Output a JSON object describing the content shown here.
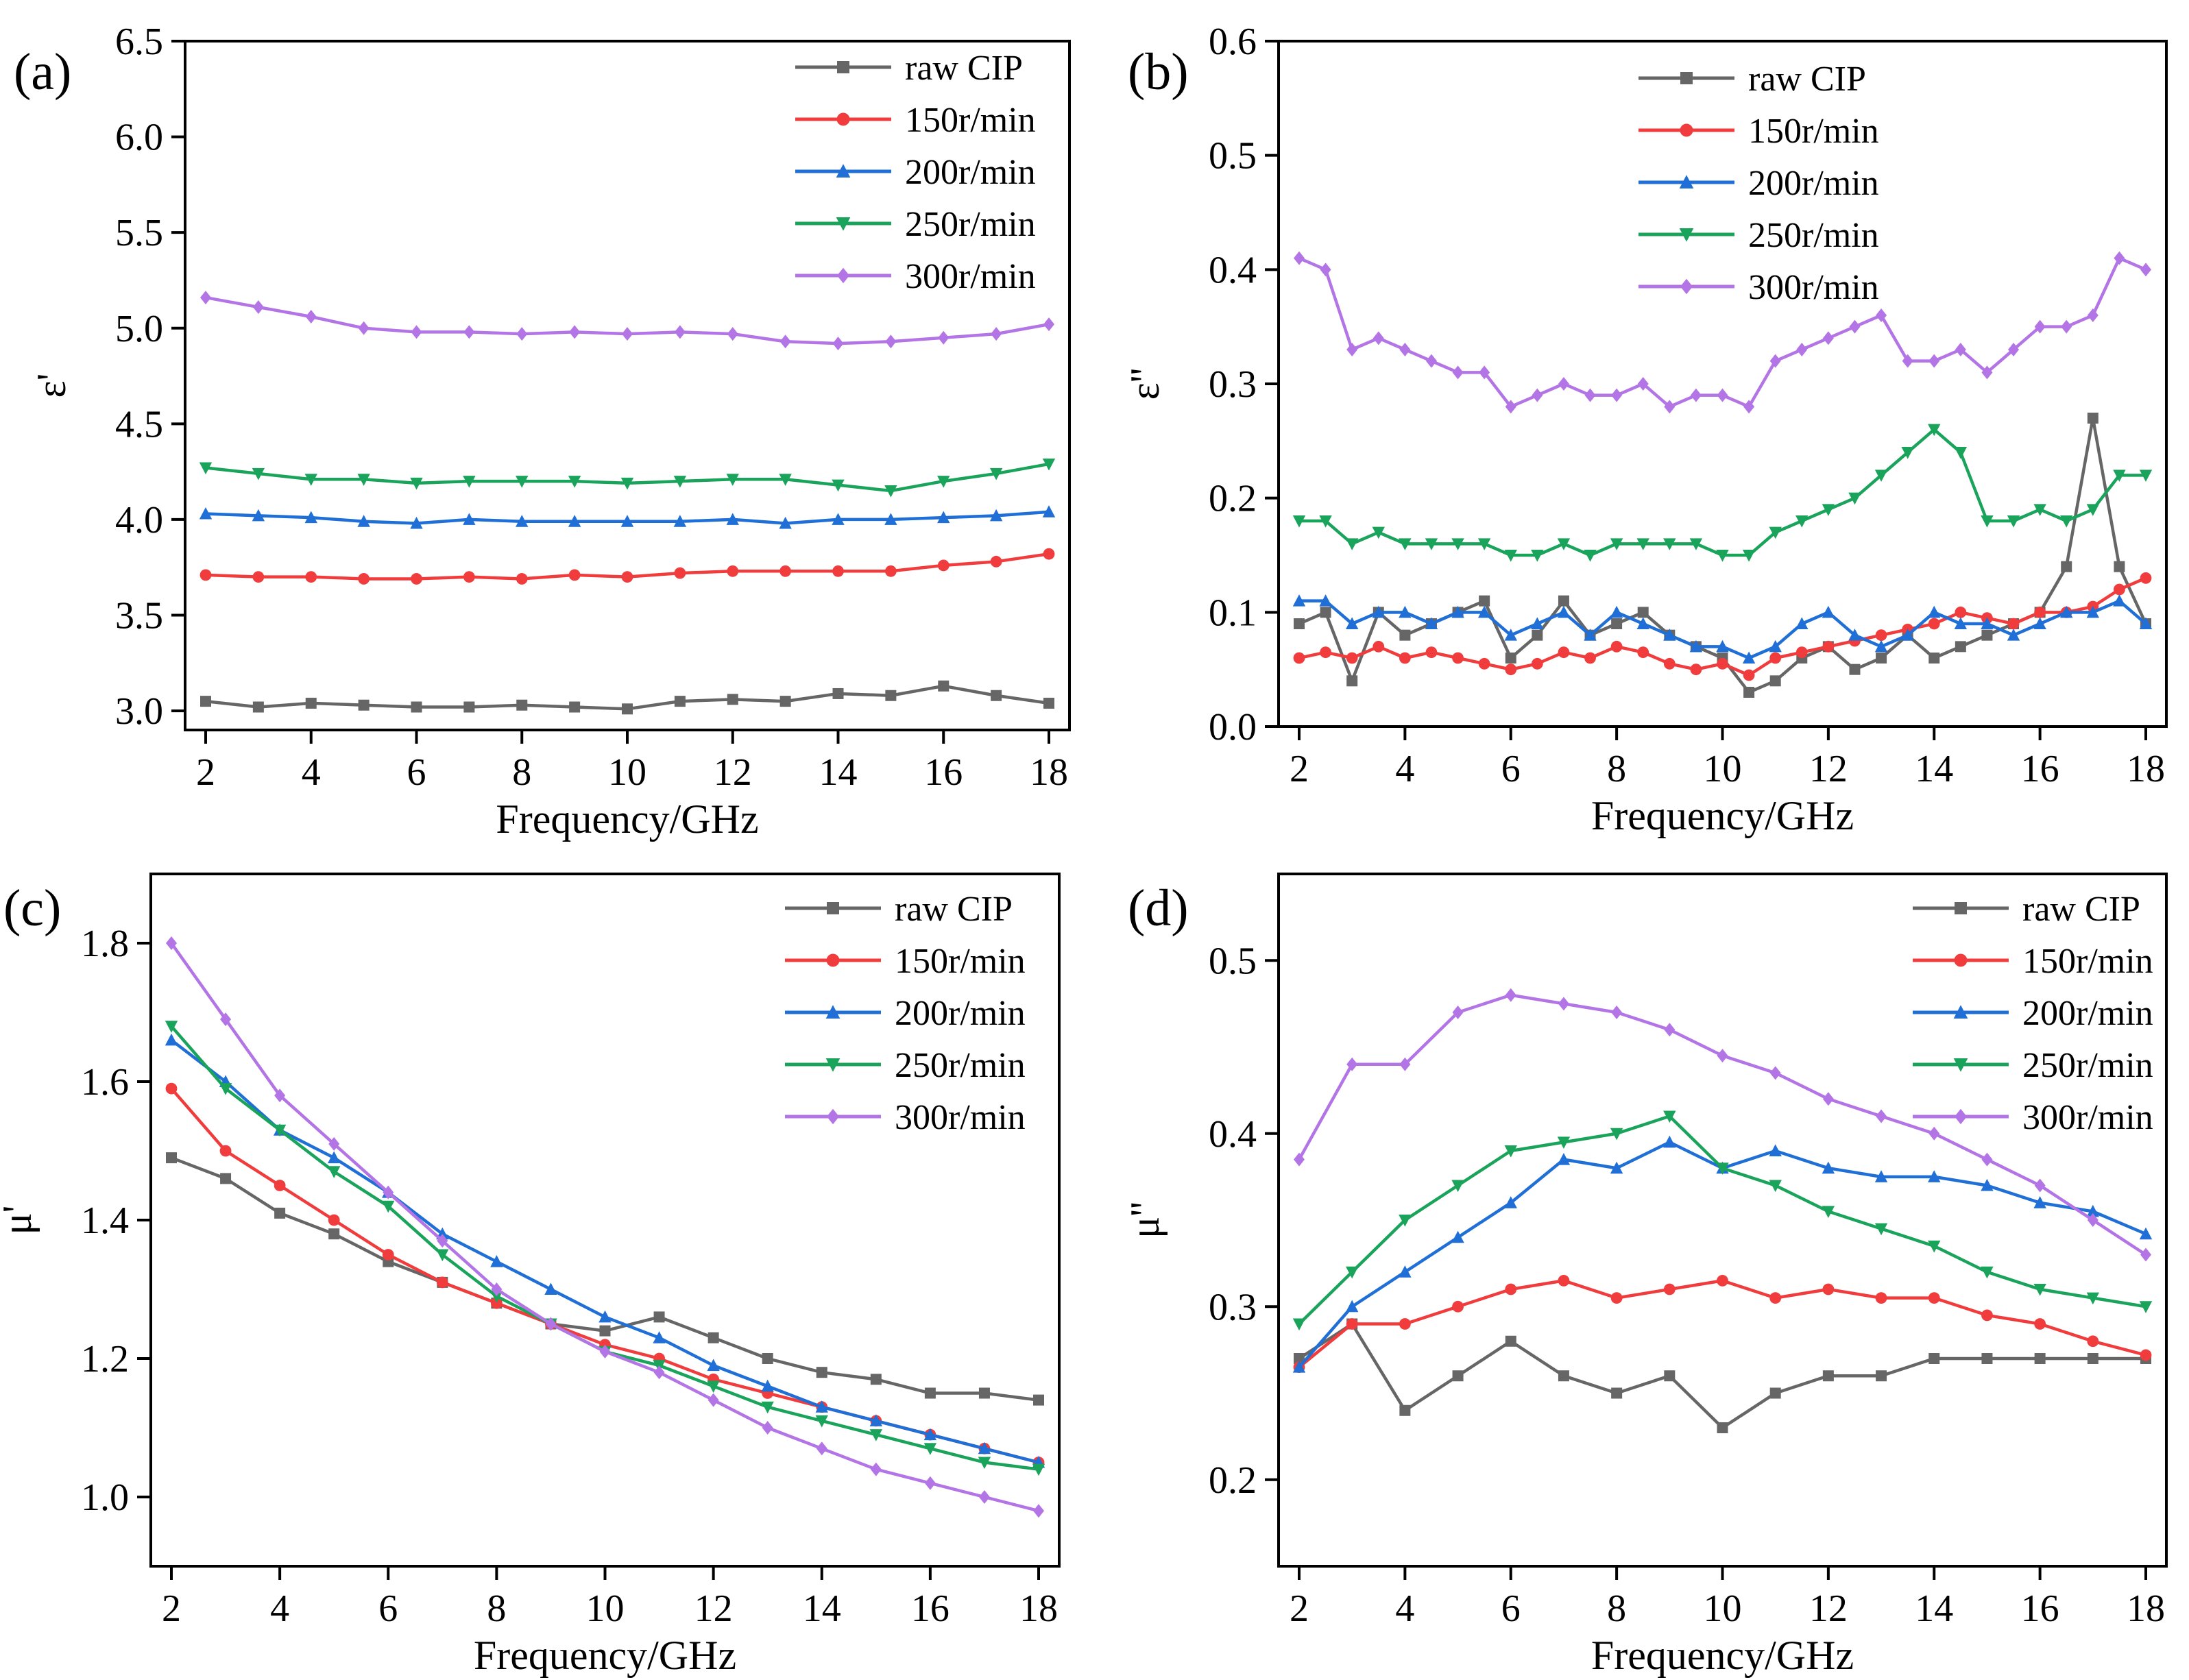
{
  "chart_data": [
    {
      "panel": "(a)",
      "type": "line",
      "xlabel": "Frequency/GHz",
      "ylabel": "ε'",
      "xlim": [
        2,
        18
      ],
      "ylim": [
        2.9,
        6.5
      ],
      "xticks": [
        2,
        4,
        6,
        8,
        10,
        12,
        14,
        16,
        18
      ],
      "yticks": [
        "3.0",
        "3.5",
        "4.0",
        "4.5",
        "5.0",
        "5.5",
        "6.0",
        "6.5"
      ],
      "x": [
        2,
        3,
        4,
        5,
        6,
        7,
        8,
        9,
        10,
        11,
        12,
        13,
        14,
        15,
        16,
        17,
        18
      ],
      "series": [
        {
          "name": "raw CIP",
          "color": "#666666",
          "marker": "square",
          "values": [
            3.05,
            3.02,
            3.04,
            3.03,
            3.02,
            3.02,
            3.03,
            3.02,
            3.01,
            3.05,
            3.06,
            3.05,
            3.09,
            3.08,
            3.13,
            3.08,
            3.04
          ]
        },
        {
          "name": "150r/min",
          "color": "#f03c3c",
          "marker": "circle",
          "values": [
            3.71,
            3.7,
            3.7,
            3.69,
            3.69,
            3.7,
            3.69,
            3.71,
            3.7,
            3.72,
            3.73,
            3.73,
            3.73,
            3.73,
            3.76,
            3.78,
            3.82
          ]
        },
        {
          "name": "200r/min",
          "color": "#1f6fd6",
          "marker": "triangle-up",
          "values": [
            4.03,
            4.02,
            4.01,
            3.99,
            3.98,
            4.0,
            3.99,
            3.99,
            3.99,
            3.99,
            4.0,
            3.98,
            4.0,
            4.0,
            4.01,
            4.02,
            4.04
          ]
        },
        {
          "name": "250r/min",
          "color": "#1aa35a",
          "marker": "triangle-down",
          "values": [
            4.27,
            4.24,
            4.21,
            4.21,
            4.19,
            4.2,
            4.2,
            4.2,
            4.19,
            4.2,
            4.21,
            4.21,
            4.18,
            4.15,
            4.2,
            4.24,
            4.29
          ]
        },
        {
          "name": "300r/min",
          "color": "#b374e6",
          "marker": "diamond",
          "values": [
            5.16,
            5.11,
            5.06,
            5.0,
            4.98,
            4.98,
            4.97,
            4.98,
            4.97,
            4.98,
            4.97,
            4.93,
            4.92,
            4.93,
            4.95,
            4.97,
            5.02
          ]
        }
      ]
    },
    {
      "panel": "(b)",
      "type": "line",
      "xlabel": "Frequency/GHz",
      "ylabel": "ε''",
      "xlim": [
        2,
        18
      ],
      "ylim": [
        0.0,
        0.6
      ],
      "xticks": [
        2,
        4,
        6,
        8,
        10,
        12,
        14,
        16,
        18
      ],
      "yticks": [
        "0.0",
        "0.1",
        "0.2",
        "0.3",
        "0.4",
        "0.5",
        "0.6"
      ],
      "x": [
        2,
        2.5,
        3,
        3.5,
        4,
        4.5,
        5,
        5.5,
        6,
        6.5,
        7,
        7.5,
        8,
        8.5,
        9,
        9.5,
        10,
        10.5,
        11,
        11.5,
        12,
        12.5,
        13,
        13.5,
        14,
        14.5,
        15,
        15.5,
        16,
        16.5,
        17,
        17.5,
        18
      ],
      "series": [
        {
          "name": "raw CIP",
          "color": "#666666",
          "marker": "square",
          "values": [
            0.09,
            0.1,
            0.04,
            0.1,
            0.08,
            0.09,
            0.1,
            0.11,
            0.06,
            0.08,
            0.11,
            0.08,
            0.09,
            0.1,
            0.08,
            0.07,
            0.06,
            0.03,
            0.04,
            0.06,
            0.07,
            0.05,
            0.06,
            0.08,
            0.06,
            0.07,
            0.08,
            0.09,
            0.1,
            0.14,
            0.27,
            0.14,
            0.09
          ]
        },
        {
          "name": "150r/min",
          "color": "#f03c3c",
          "marker": "circle",
          "values": [
            0.06,
            0.065,
            0.06,
            0.07,
            0.06,
            0.065,
            0.06,
            0.055,
            0.05,
            0.055,
            0.065,
            0.06,
            0.07,
            0.065,
            0.055,
            0.05,
            0.055,
            0.045,
            0.06,
            0.065,
            0.07,
            0.075,
            0.08,
            0.085,
            0.09,
            0.1,
            0.095,
            0.09,
            0.1,
            0.1,
            0.105,
            0.12,
            0.13
          ]
        },
        {
          "name": "200r/min",
          "color": "#1f6fd6",
          "marker": "triangle-up",
          "values": [
            0.11,
            0.11,
            0.09,
            0.1,
            0.1,
            0.09,
            0.1,
            0.1,
            0.08,
            0.09,
            0.1,
            0.08,
            0.1,
            0.09,
            0.08,
            0.07,
            0.07,
            0.06,
            0.07,
            0.09,
            0.1,
            0.08,
            0.07,
            0.08,
            0.1,
            0.09,
            0.09,
            0.08,
            0.09,
            0.1,
            0.1,
            0.11,
            0.09
          ]
        },
        {
          "name": "250r/min",
          "color": "#1aa35a",
          "marker": "triangle-down",
          "values": [
            0.18,
            0.18,
            0.16,
            0.17,
            0.16,
            0.16,
            0.16,
            0.16,
            0.15,
            0.15,
            0.16,
            0.15,
            0.16,
            0.16,
            0.16,
            0.16,
            0.15,
            0.15,
            0.17,
            0.18,
            0.19,
            0.2,
            0.22,
            0.24,
            0.26,
            0.24,
            0.18,
            0.18,
            0.19,
            0.18,
            0.19,
            0.22,
            0.22
          ]
        },
        {
          "name": "300r/min",
          "color": "#b374e6",
          "marker": "diamond",
          "values": [
            0.41,
            0.4,
            0.33,
            0.34,
            0.33,
            0.32,
            0.31,
            0.31,
            0.28,
            0.29,
            0.3,
            0.29,
            0.29,
            0.3,
            0.28,
            0.29,
            0.29,
            0.28,
            0.32,
            0.33,
            0.34,
            0.35,
            0.36,
            0.32,
            0.32,
            0.33,
            0.31,
            0.33,
            0.35,
            0.35,
            0.36,
            0.41,
            0.4
          ]
        }
      ]
    },
    {
      "panel": "(c)",
      "type": "line",
      "xlabel": "Frequency/GHz",
      "ylabel": "μ'",
      "xlim": [
        2,
        18
      ],
      "ylim": [
        0.9,
        1.9
      ],
      "xticks": [
        2,
        4,
        6,
        8,
        10,
        12,
        14,
        16,
        18
      ],
      "yticks": [
        "1.0",
        "1.2",
        "1.4",
        "1.6",
        "1.8"
      ],
      "x": [
        2,
        3,
        4,
        5,
        6,
        7,
        8,
        9,
        10,
        11,
        12,
        13,
        14,
        15,
        16,
        17,
        18
      ],
      "series": [
        {
          "name": "raw CIP",
          "color": "#666666",
          "marker": "square",
          "values": [
            1.49,
            1.46,
            1.41,
            1.38,
            1.34,
            1.31,
            1.28,
            1.25,
            1.24,
            1.26,
            1.23,
            1.2,
            1.18,
            1.17,
            1.15,
            1.15,
            1.14
          ]
        },
        {
          "name": "150r/min",
          "color": "#f03c3c",
          "marker": "circle",
          "values": [
            1.59,
            1.5,
            1.45,
            1.4,
            1.35,
            1.31,
            1.28,
            1.25,
            1.22,
            1.2,
            1.17,
            1.15,
            1.13,
            1.11,
            1.09,
            1.07,
            1.05
          ]
        },
        {
          "name": "200r/min",
          "color": "#1f6fd6",
          "marker": "triangle-up",
          "values": [
            1.66,
            1.6,
            1.53,
            1.49,
            1.44,
            1.38,
            1.34,
            1.3,
            1.26,
            1.23,
            1.19,
            1.16,
            1.13,
            1.11,
            1.09,
            1.07,
            1.05
          ]
        },
        {
          "name": "250r/min",
          "color": "#1aa35a",
          "marker": "triangle-down",
          "values": [
            1.68,
            1.59,
            1.53,
            1.47,
            1.42,
            1.35,
            1.29,
            1.25,
            1.21,
            1.19,
            1.16,
            1.13,
            1.11,
            1.09,
            1.07,
            1.05,
            1.04
          ]
        },
        {
          "name": "300r/min",
          "color": "#b374e6",
          "marker": "diamond",
          "values": [
            1.8,
            1.69,
            1.58,
            1.51,
            1.44,
            1.37,
            1.3,
            1.25,
            1.21,
            1.18,
            1.14,
            1.1,
            1.07,
            1.04,
            1.02,
            1.0,
            0.98
          ]
        }
      ]
    },
    {
      "panel": "(d)",
      "type": "line",
      "xlabel": "Frequency/GHz",
      "ylabel": "μ''",
      "xlim": [
        2,
        18
      ],
      "ylim": [
        0.15,
        0.55
      ],
      "xticks": [
        2,
        4,
        6,
        8,
        10,
        12,
        14,
        16,
        18
      ],
      "yticks": [
        "0.2",
        "0.3",
        "0.4",
        "0.5"
      ],
      "x": [
        2,
        3,
        4,
        5,
        6,
        7,
        8,
        9,
        10,
        11,
        12,
        13,
        14,
        15,
        16,
        17,
        18
      ],
      "series": [
        {
          "name": "raw CIP",
          "color": "#666666",
          "marker": "square",
          "values": [
            0.27,
            0.29,
            0.24,
            0.26,
            0.28,
            0.26,
            0.25,
            0.26,
            0.23,
            0.25,
            0.26,
            0.26,
            0.27,
            0.27,
            0.27,
            0.27,
            0.27
          ]
        },
        {
          "name": "150r/min",
          "color": "#f03c3c",
          "marker": "circle",
          "values": [
            0.265,
            0.29,
            0.29,
            0.3,
            0.31,
            0.315,
            0.305,
            0.31,
            0.315,
            0.305,
            0.31,
            0.305,
            0.305,
            0.295,
            0.29,
            0.28,
            0.272
          ]
        },
        {
          "name": "200r/min",
          "color": "#1f6fd6",
          "marker": "triangle-up",
          "values": [
            0.265,
            0.3,
            0.32,
            0.34,
            0.36,
            0.385,
            0.38,
            0.395,
            0.38,
            0.39,
            0.38,
            0.375,
            0.375,
            0.37,
            0.36,
            0.355,
            0.342
          ]
        },
        {
          "name": "250r/min",
          "color": "#1aa35a",
          "marker": "triangle-down",
          "values": [
            0.29,
            0.32,
            0.35,
            0.37,
            0.39,
            0.395,
            0.4,
            0.41,
            0.38,
            0.37,
            0.355,
            0.345,
            0.335,
            0.32,
            0.31,
            0.305,
            0.3
          ]
        },
        {
          "name": "300r/min",
          "color": "#b374e6",
          "marker": "diamond",
          "values": [
            0.385,
            0.44,
            0.44,
            0.47,
            0.48,
            0.475,
            0.47,
            0.46,
            0.445,
            0.435,
            0.42,
            0.41,
            0.4,
            0.385,
            0.37,
            0.35,
            0.33
          ]
        }
      ]
    }
  ]
}
